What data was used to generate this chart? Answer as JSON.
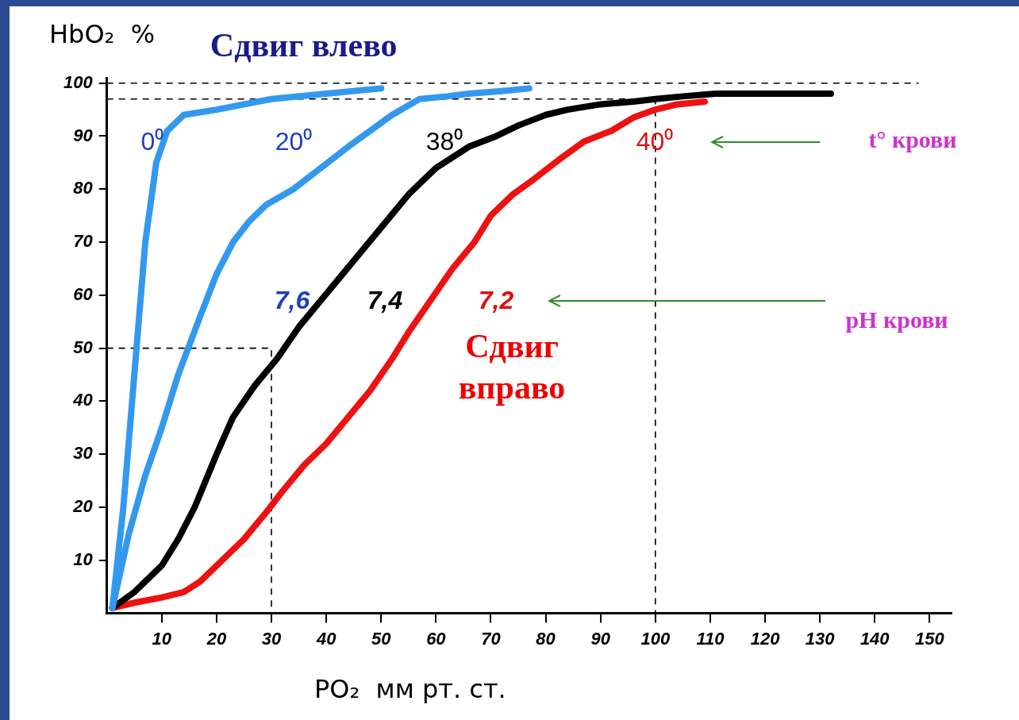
{
  "chart_data": {
    "type": "line",
    "title": "Сдвиг влево",
    "xlabel": "PO₂  мм рт. ст.",
    "ylabel": "HbO₂  %",
    "xlim": [
      0,
      154
    ],
    "ylim": [
      0,
      101
    ],
    "xticks": [
      10,
      20,
      30,
      40,
      50,
      60,
      70,
      80,
      90,
      100,
      110,
      120,
      130,
      140,
      150
    ],
    "yticks": [
      10,
      20,
      30,
      40,
      50,
      60,
      70,
      80,
      90,
      100
    ],
    "grid": false,
    "marker": "none",
    "series": [
      {
        "color": "#3399ee",
        "x": [
          1,
          3,
          5,
          7,
          9,
          11,
          14,
          20,
          30,
          40,
          50
        ],
        "values": [
          1,
          20,
          45,
          70,
          85,
          91,
          94,
          95,
          97,
          98,
          99
        ]
      },
      {
        "color": "#3399ee",
        "x": [
          1,
          4,
          7,
          10,
          13,
          17,
          20,
          23,
          26,
          29,
          34,
          39,
          44,
          48,
          52,
          57,
          62,
          66,
          72,
          77
        ],
        "values": [
          1,
          15,
          26,
          35,
          45,
          56,
          64,
          70,
          74,
          77,
          80,
          84,
          88,
          91,
          94,
          97,
          97.5,
          98,
          98.5,
          99
        ]
      },
      {
        "color": "#000000",
        "x": [
          1,
          5,
          10,
          13,
          16,
          20,
          23,
          27,
          31,
          35,
          39,
          43,
          47,
          51,
          55,
          60,
          66,
          71,
          75,
          80,
          84,
          90,
          96,
          100,
          105,
          111,
          120,
          132
        ],
        "values": [
          1,
          4,
          9,
          14,
          20,
          30,
          37,
          43,
          48,
          54,
          59,
          64,
          69,
          74,
          79,
          84,
          88,
          90,
          92,
          94,
          95,
          96,
          96.5,
          97,
          97.5,
          98,
          98,
          98
        ]
      },
      {
        "color": "#ee1111",
        "x": [
          1,
          5,
          10,
          14,
          17,
          21,
          25,
          29,
          32,
          36,
          40,
          44,
          48,
          52,
          55,
          59,
          63,
          67,
          70,
          74,
          78,
          83,
          87,
          92,
          96,
          100,
          104,
          109
        ],
        "values": [
          1,
          2,
          3,
          4,
          6,
          10,
          14,
          19,
          23,
          28,
          32,
          37,
          42,
          48,
          53,
          59,
          65,
          70,
          75,
          79,
          82,
          86,
          89,
          91,
          93.5,
          95,
          96,
          96.5
        ]
      },
      {
        "color": "#000000",
        "line_style": "dashed",
        "x": [
          0,
          30,
          30
        ],
        "values": [
          50,
          50,
          0
        ]
      },
      {
        "color": "#000000",
        "line_style": "dashed",
        "x": [
          0,
          100,
          100
        ],
        "values": [
          97,
          97,
          0
        ]
      },
      {
        "color": "#000000",
        "line_style": "dashed",
        "x": [
          0,
          148
        ],
        "values": [
          100,
          100
        ]
      }
    ],
    "annotations": [
      "0⁰",
      "20⁰",
      "38⁰",
      "40⁰",
      "7,6",
      "7,4",
      "7,2",
      "Сдвиг вправо",
      "t° крови",
      "pH крови"
    ]
  }
}
